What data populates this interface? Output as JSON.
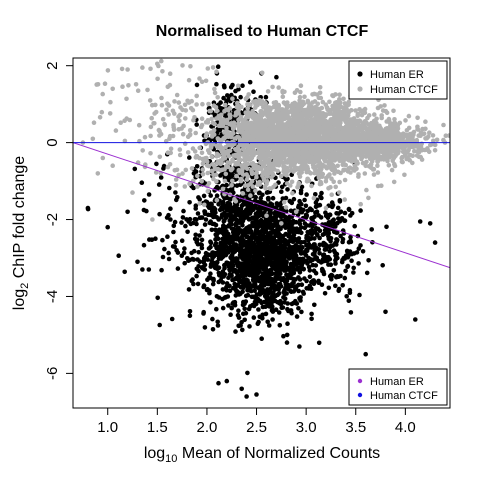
{
  "chart_data": {
    "type": "scatter",
    "title": "Normalised to Human CTCF",
    "xlabel_main": "log",
    "xlabel_sub": "10",
    "xlabel_rest": " Mean of Normalized Counts",
    "ylabel_main": "log",
    "ylabel_sub": "2",
    "ylabel_rest": " ChIP fold change",
    "xlim": [
      0.65,
      4.45
    ],
    "ylim": [
      -6.9,
      2.2
    ],
    "x_ticks": [
      1.0,
      1.5,
      2.0,
      2.5,
      3.0,
      3.5,
      4.0
    ],
    "x_tick_labels": [
      "1.0",
      "1.5",
      "2.0",
      "2.5",
      "3.0",
      "3.5",
      "4.0"
    ],
    "y_ticks": [
      2,
      0,
      -2,
      -4,
      -6
    ],
    "y_tick_labels": [
      "2",
      "0",
      "-2",
      "-4",
      "-6"
    ],
    "series": [
      {
        "name": "Human ER",
        "color": "#000000",
        "clusters": [
          {
            "cx": 2.55,
            "cy": -2.9,
            "sx": 0.28,
            "sy": 0.8,
            "n": 1500
          },
          {
            "cx": 2.3,
            "cy": -1.2,
            "sx": 0.2,
            "sy": 0.9,
            "n": 400
          },
          {
            "cx": 2.25,
            "cy": 0.6,
            "sx": 0.12,
            "sy": 0.5,
            "n": 150
          },
          {
            "cx": 3.2,
            "cy": -2.6,
            "sx": 0.22,
            "sy": 0.7,
            "n": 250
          },
          {
            "cx": 1.7,
            "cy": -2.2,
            "sx": 0.28,
            "sy": 1.0,
            "n": 90
          }
        ],
        "points": [
          [
            2.35,
            -6.4
          ],
          [
            2.4,
            -6.6
          ],
          [
            2.5,
            -6.55
          ],
          [
            2.2,
            -6.2
          ],
          [
            4.1,
            -4.6
          ],
          [
            4.25,
            -2.1
          ],
          [
            4.3,
            -2.6
          ],
          [
            4.15,
            -2.05
          ],
          [
            3.8,
            -4.4
          ],
          [
            3.6,
            -5.5
          ],
          [
            1.2,
            -1.8
          ],
          [
            1.0,
            -2.2
          ],
          [
            0.8,
            -1.7
          ],
          [
            1.3,
            -3.1
          ],
          [
            1.6,
            -0.3
          ],
          [
            1.9,
            1.5
          ],
          [
            2.1,
            1.8
          ],
          [
            2.55,
            1.8
          ],
          [
            2.7,
            1.7
          ],
          [
            1.35,
            -3.3
          ]
        ]
      },
      {
        "name": "Human CTCF",
        "color": "#b0b0b0",
        "clusters": [
          {
            "cx": 3.0,
            "cy": 0.1,
            "sx": 0.38,
            "sy": 0.45,
            "n": 2200
          },
          {
            "cx": 3.7,
            "cy": 0.0,
            "sx": 0.25,
            "sy": 0.25,
            "n": 700
          },
          {
            "cx": 2.5,
            "cy": 0.2,
            "sx": 0.3,
            "sy": 0.55,
            "n": 400
          },
          {
            "cx": 1.6,
            "cy": 0.7,
            "sx": 0.35,
            "sy": 0.7,
            "n": 120
          },
          {
            "cx": 2.2,
            "cy": -0.8,
            "sx": 0.3,
            "sy": 0.4,
            "n": 100
          }
        ],
        "points": [
          [
            0.75,
            0.0
          ],
          [
            0.85,
            0.1
          ],
          [
            0.95,
            -0.4
          ],
          [
            0.9,
            -0.8
          ],
          [
            1.05,
            1.4
          ],
          [
            1.2,
            1.9
          ],
          [
            1.35,
            1.95
          ],
          [
            1.5,
            2.05
          ],
          [
            1.45,
            -2.0
          ],
          [
            2.6,
            -1.9
          ],
          [
            2.75,
            -2.1
          ],
          [
            2.9,
            -1.8
          ],
          [
            3.2,
            -1.7
          ],
          [
            3.55,
            -1.6
          ],
          [
            4.3,
            -0.2
          ],
          [
            4.4,
            0.0
          ],
          [
            1.25,
            -1.3
          ],
          [
            1.05,
            -0.6
          ]
        ]
      }
    ],
    "lines": [
      {
        "name": "Human ER",
        "color": "#9b30d0",
        "points": [
          [
            0.65,
            0.0
          ],
          [
            4.45,
            -3.25
          ]
        ]
      },
      {
        "name": "Human CTCF",
        "color": "#1010e0",
        "points": [
          [
            0.65,
            0.0
          ],
          [
            4.45,
            0.0
          ]
        ]
      }
    ],
    "legend_points": {
      "placement": "top-right",
      "items": [
        {
          "label": "Human ER",
          "color": "#000000"
        },
        {
          "label": "Human CTCF",
          "color": "#b0b0b0"
        }
      ]
    },
    "legend_lines": {
      "placement": "bottom-right",
      "items": [
        {
          "label": "Human ER",
          "color": "#9b30d0"
        },
        {
          "label": "Human CTCF",
          "color": "#1010e0"
        }
      ]
    }
  }
}
